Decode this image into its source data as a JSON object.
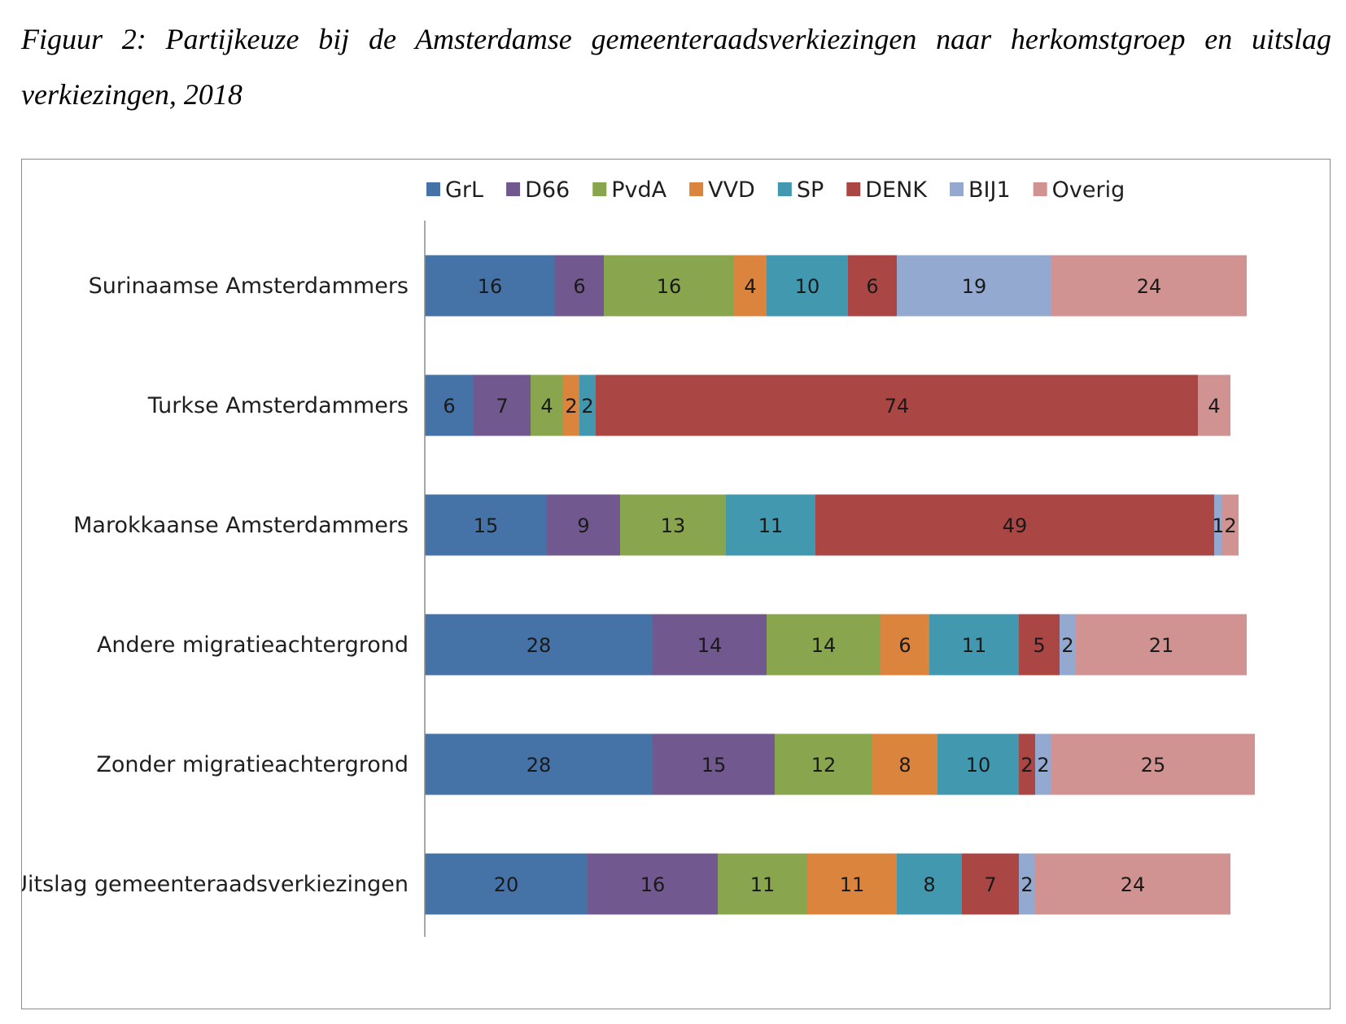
{
  "caption": "Figuur 2: Partijkeuze bij de Amsterdamse gemeenteraadsverkiezingen naar herkomstgroep en uitslag verkiezingen, 2018",
  "chart_data": {
    "type": "bar",
    "orientation": "horizontal",
    "stacked": true,
    "title": "",
    "xlabel": "",
    "ylabel": "",
    "xlim": [
      0,
      100
    ],
    "grid": false,
    "legend_position": "top",
    "categories": [
      "Surinaamse Amsterdammers",
      "Turkse Amsterdammers",
      "Marokkaanse Amsterdammers",
      "Andere migratieachtergrond",
      "Zonder migratieachtergrond",
      "Uitslag gemeenteraadsverkiezingen"
    ],
    "series": [
      {
        "name": "GrL",
        "color": "#4572a7",
        "values": [
          16,
          6,
          15,
          28,
          28,
          20
        ]
      },
      {
        "name": "D66",
        "color": "#71588f",
        "values": [
          6,
          7,
          9,
          14,
          15,
          16
        ]
      },
      {
        "name": "PvdA",
        "color": "#89a54e",
        "values": [
          16,
          4,
          13,
          14,
          12,
          11
        ]
      },
      {
        "name": "VVD",
        "color": "#db843d",
        "values": [
          4,
          2,
          0,
          6,
          8,
          11
        ]
      },
      {
        "name": "SP",
        "color": "#4198af",
        "values": [
          10,
          2,
          11,
          11,
          10,
          8
        ]
      },
      {
        "name": "DENK",
        "color": "#aa4643",
        "values": [
          6,
          74,
          49,
          5,
          2,
          7
        ]
      },
      {
        "name": "BIJ1",
        "color": "#93a9cf",
        "values": [
          19,
          0,
          1,
          2,
          2,
          2
        ]
      },
      {
        "name": "Overig",
        "color": "#d19392",
        "values": [
          24,
          4,
          2,
          21,
          25,
          24
        ]
      }
    ]
  }
}
